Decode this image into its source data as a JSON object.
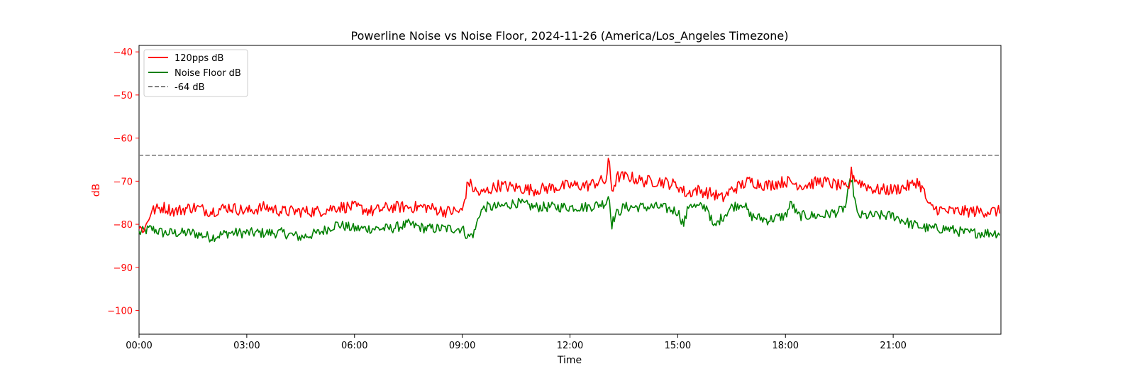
{
  "chart_data": {
    "type": "line",
    "title": "Powerline Noise vs Noise Floor, 2024-11-26 (America/Los_Angeles Timezone)",
    "xlabel": "Time",
    "ylabel": "dB",
    "xlim": [
      "00:00",
      "24:00"
    ],
    "ylim": [
      -105.5,
      -38.5
    ],
    "x_ticks": [
      "00:00",
      "03:00",
      "06:00",
      "09:00",
      "12:00",
      "15:00",
      "18:00",
      "21:00"
    ],
    "y_ticks": [
      -40,
      -50,
      -60,
      -70,
      -80,
      -90,
      -100
    ],
    "y_tick_labels": [
      "−40",
      "−50",
      "−60",
      "−70",
      "−80",
      "−90",
      "−100"
    ],
    "grid": false,
    "legend_position": "upper-left",
    "colors": {
      "powerline": "#ff0000",
      "noise_floor": "#008000",
      "threshold": "#808080",
      "axis_label": "#ff0000"
    },
    "threshold": {
      "name": "-64 dB",
      "value": -64
    },
    "series": [
      {
        "name": "120pps dB",
        "x": [
          "00:00",
          "00:10",
          "00:20",
          "00:40",
          "01:00",
          "01:30",
          "02:00",
          "02:30",
          "03:00",
          "03:30",
          "04:00",
          "04:30",
          "05:00",
          "05:30",
          "06:00",
          "06:30",
          "07:00",
          "07:30",
          "08:00",
          "08:30",
          "08:50",
          "09:00",
          "09:10",
          "09:20",
          "09:30",
          "09:45",
          "10:00",
          "10:30",
          "11:00",
          "11:30",
          "12:00",
          "12:30",
          "12:50",
          "13:00",
          "13:05",
          "13:10",
          "13:20",
          "13:40",
          "14:00",
          "14:30",
          "15:00",
          "15:15",
          "15:30",
          "16:00",
          "16:15",
          "16:30",
          "17:00",
          "17:30",
          "18:00",
          "18:30",
          "19:00",
          "19:30",
          "19:45",
          "19:50",
          "20:00",
          "20:30",
          "21:00",
          "21:30",
          "21:40",
          "21:50",
          "22:00",
          "22:30",
          "23:00",
          "23:30",
          "23:59"
        ],
        "values": [
          -81,
          -81,
          -77,
          -76,
          -77,
          -76,
          -77,
          -76,
          -77,
          -76,
          -77,
          -77,
          -77,
          -76,
          -76,
          -77,
          -76,
          -76,
          -76,
          -77,
          -77,
          -77,
          -70,
          -72,
          -73,
          -72,
          -71,
          -71.5,
          -72,
          -71.5,
          -71,
          -71,
          -70,
          -70,
          -65,
          -72,
          -69,
          -69,
          -70,
          -70,
          -71,
          -73,
          -72,
          -73,
          -74,
          -72,
          -70,
          -71,
          -70,
          -71,
          -70,
          -71,
          -72,
          -68,
          -70,
          -72,
          -72,
          -71,
          -70,
          -72,
          -76,
          -77,
          -77,
          -77,
          -77
        ]
      },
      {
        "name": "Noise Floor dB",
        "x": [
          "00:00",
          "00:20",
          "00:40",
          "01:00",
          "01:30",
          "02:00",
          "02:30",
          "03:00",
          "03:30",
          "04:00",
          "04:30",
          "05:00",
          "05:30",
          "06:00",
          "06:30",
          "07:00",
          "07:30",
          "08:00",
          "08:30",
          "09:00",
          "09:10",
          "09:20",
          "09:30",
          "09:40",
          "10:00",
          "10:30",
          "11:00",
          "11:30",
          "12:00",
          "12:30",
          "13:00",
          "13:05",
          "13:10",
          "13:15",
          "13:30",
          "14:00",
          "14:30",
          "15:00",
          "15:10",
          "15:20",
          "15:30",
          "15:50",
          "16:00",
          "16:10",
          "16:30",
          "16:50",
          "17:00",
          "17:30",
          "18:00",
          "18:10",
          "18:20",
          "18:30",
          "19:00",
          "19:30",
          "19:40",
          "19:50",
          "20:00",
          "20:10",
          "20:30",
          "21:00",
          "21:30",
          "22:00",
          "22:30",
          "23:00",
          "23:30",
          "23:59"
        ],
        "values": [
          -82,
          -81,
          -82,
          -82,
          -82,
          -83,
          -82,
          -82,
          -82,
          -82,
          -83,
          -82,
          -80,
          -81,
          -81,
          -81,
          -80,
          -81,
          -81,
          -81,
          -83,
          -82,
          -77,
          -76,
          -76,
          -75,
          -76,
          -76,
          -76,
          -76,
          -75,
          -73,
          -80,
          -78,
          -76,
          -76,
          -76,
          -77,
          -80,
          -75,
          -76,
          -76,
          -81,
          -79,
          -76,
          -75,
          -78,
          -79,
          -78,
          -75,
          -78,
          -78,
          -78,
          -77,
          -76,
          -69,
          -78,
          -78,
          -78,
          -78,
          -80,
          -81,
          -81,
          -82,
          -82,
          -82
        ]
      }
    ]
  }
}
